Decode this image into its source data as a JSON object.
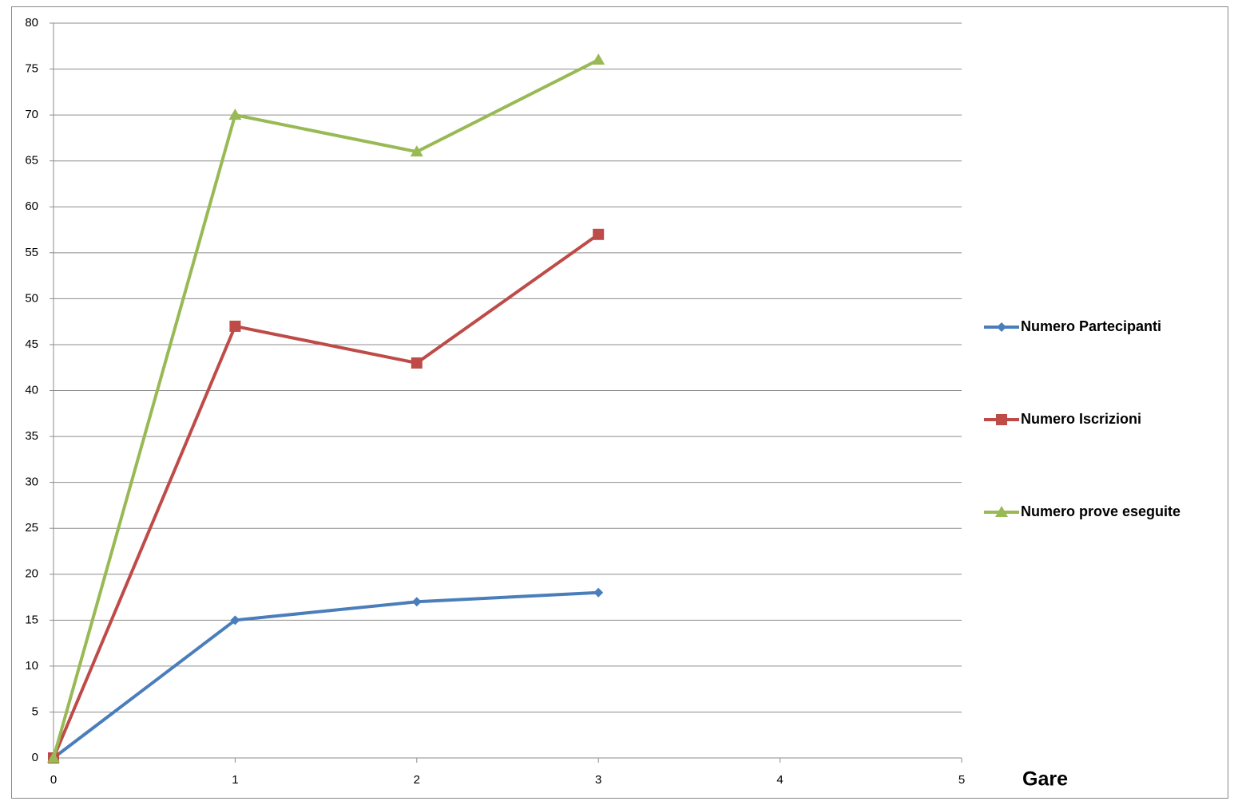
{
  "chart_data": {
    "type": "line",
    "x_label": "Gare",
    "x": [
      0,
      1,
      2,
      3
    ],
    "xlim": [
      0,
      5
    ],
    "xticks": [
      0,
      1,
      2,
      3,
      4,
      5
    ],
    "ylim": [
      0,
      80
    ],
    "yticks": [
      0,
      5,
      10,
      15,
      20,
      25,
      30,
      35,
      40,
      45,
      50,
      55,
      60,
      65,
      70,
      75,
      80
    ],
    "grid": true,
    "legend": "right",
    "series": [
      {
        "name": "Numero Partecipanti",
        "color": "#4a7ebb",
        "marker": "diamond",
        "values": [
          0,
          15,
          17,
          18
        ]
      },
      {
        "name": "Numero Iscrizioni",
        "color": "#be4b48",
        "marker": "square",
        "values": [
          0,
          47,
          43,
          57
        ]
      },
      {
        "name": "Numero prove eseguite",
        "color": "#98b954",
        "marker": "triangle",
        "values": [
          0,
          70,
          66,
          76
        ]
      }
    ]
  }
}
